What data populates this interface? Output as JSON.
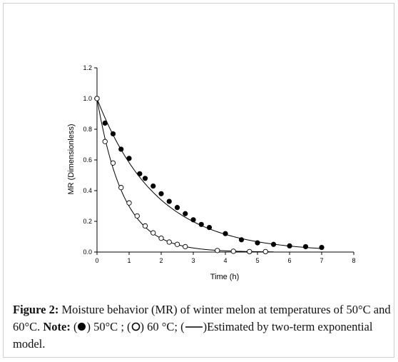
{
  "chart_data": {
    "type": "scatter",
    "xlabel": "Time (h)",
    "ylabel": "MR (Dimensionless)",
    "xlim": [
      0,
      8
    ],
    "ylim": [
      0,
      1.2
    ],
    "x_ticks": [
      "0",
      "1",
      "2",
      "3",
      "4",
      "5",
      "6",
      "7",
      "8"
    ],
    "y_ticks": [
      "0.0",
      "0.2",
      "0.4",
      "0.6",
      "0.8",
      "1.0",
      "1.2"
    ],
    "grid": false,
    "series": [
      {
        "marker": "filled-circle",
        "x": [
          0,
          0.25,
          0.5,
          0.75,
          1.0,
          1.33,
          1.5,
          1.75,
          2.0,
          2.25,
          2.5,
          2.75,
          3.0,
          3.25,
          3.5,
          4.0,
          4.5,
          5.0,
          5.5,
          6.0,
          6.5,
          7.0
        ],
        "y": [
          1.0,
          0.84,
          0.77,
          0.67,
          0.61,
          0.51,
          0.48,
          0.43,
          0.38,
          0.33,
          0.29,
          0.25,
          0.21,
          0.18,
          0.16,
          0.12,
          0.08,
          0.06,
          0.05,
          0.04,
          0.035,
          0.03
        ]
      },
      {
        "marker": "open-circle",
        "x": [
          0,
          0.25,
          0.5,
          0.75,
          1.0,
          1.25,
          1.5,
          1.75,
          2.0,
          2.25,
          2.5,
          2.75,
          3.75,
          4.25,
          4.75,
          5.25
        ],
        "y": [
          1.0,
          0.72,
          0.58,
          0.42,
          0.32,
          0.235,
          0.17,
          0.125,
          0.09,
          0.065,
          0.05,
          0.035,
          0.01,
          0.005,
          0.003,
          0.003
        ]
      }
    ],
    "fitted_curves": [
      {
        "series_index": 0,
        "a": 1.0,
        "k": 0.54,
        "x_end": 7.0
      },
      {
        "series_index": 1,
        "a": 1.0,
        "k": 1.21,
        "x_end": 5.5
      }
    ]
  },
  "caption": {
    "label": "Figure 2:",
    "text1": " Moisture behavior (MR) of winter melon at temperatures of 50°C and 60°C. ",
    "note_label": "Note:",
    "open1": " (",
    "filled_text": ") 50°C ; (",
    "open_text": ") 60 °C; (",
    "line_text": ")Estimated by two-term exponential model."
  }
}
